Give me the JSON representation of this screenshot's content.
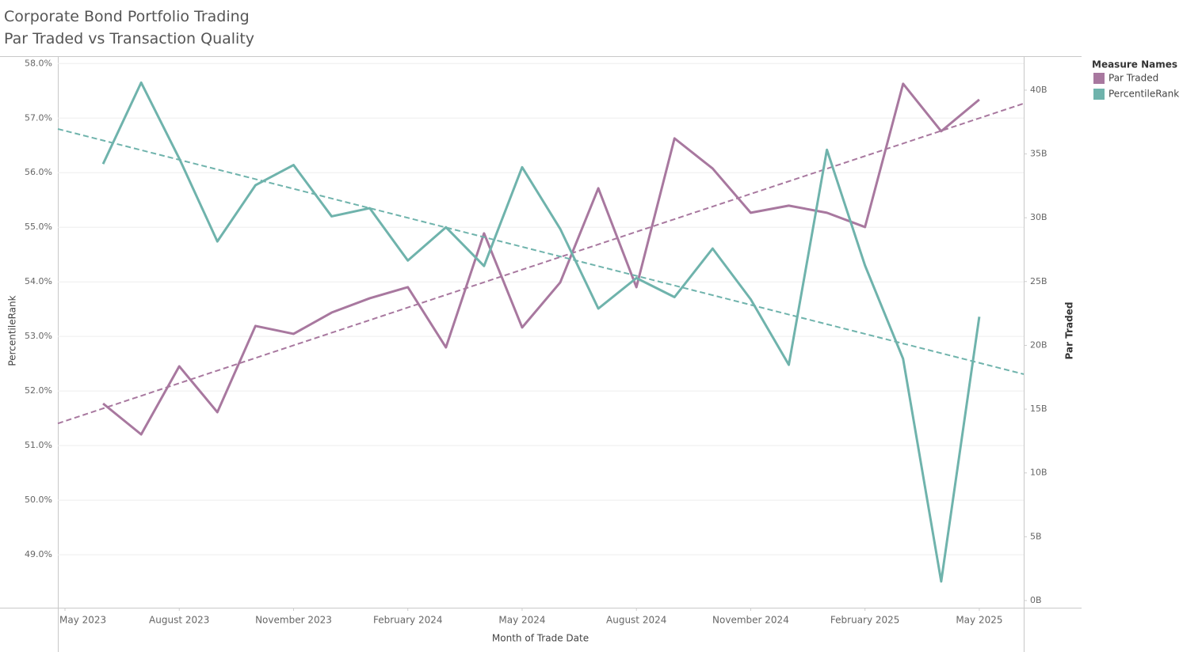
{
  "chart_data": {
    "type": "line",
    "title": "Corporate Bond Portfolio Trading",
    "subtitle": "Par Traded vs Transaction Quality",
    "x_label": "Month of Trade Date",
    "y_label": "PercentileRank",
    "y2_label": "Par Traded",
    "legend_title": "Measure Names",
    "legend": "right",
    "grid": true,
    "trend_lines": true,
    "x": [
      "2023-06",
      "2023-07",
      "2023-08",
      "2023-09",
      "2023-10",
      "2023-11",
      "2023-12",
      "2024-01",
      "2024-02",
      "2024-03",
      "2024-04",
      "2024-05",
      "2024-06",
      "2024-07",
      "2024-08",
      "2024-09",
      "2024-10",
      "2024-11",
      "2024-12",
      "2025-01",
      "2025-02",
      "2025-03",
      "2025-04",
      "2025-05"
    ],
    "xlim": [
      "2023-05",
      "2025-06"
    ],
    "xticks": [
      {
        "value": "2023-05",
        "label": "May 2023"
      },
      {
        "value": "2023-08",
        "label": "August 2023"
      },
      {
        "value": "2023-11",
        "label": "November 2023"
      },
      {
        "value": "2024-02",
        "label": "February 2024"
      },
      {
        "value": "2024-05",
        "label": "May 2024"
      },
      {
        "value": "2024-08",
        "label": "August 2024"
      },
      {
        "value": "2024-11",
        "label": "November 2024"
      },
      {
        "value": "2025-02",
        "label": "February 2025"
      },
      {
        "value": "2025-05",
        "label": "May 2025"
      }
    ],
    "ylim": [
      48.03,
      58.12
    ],
    "yticks": [
      {
        "value": 49,
        "label": "49.0%"
      },
      {
        "value": 50,
        "label": "50.0%"
      },
      {
        "value": 51,
        "label": "51.0%"
      },
      {
        "value": 52,
        "label": "52.0%"
      },
      {
        "value": 53,
        "label": "53.0%"
      },
      {
        "value": 54,
        "label": "54.0%"
      },
      {
        "value": 55,
        "label": "55.0%"
      },
      {
        "value": 56,
        "label": "56.0%"
      },
      {
        "value": 57,
        "label": "57.0%"
      },
      {
        "value": 58,
        "label": "58.0%"
      }
    ],
    "y2lim": [
      -0.56,
      42.6
    ],
    "y2ticks": [
      {
        "value": 0,
        "label": "0B"
      },
      {
        "value": 5,
        "label": "5B"
      },
      {
        "value": 10,
        "label": "10B"
      },
      {
        "value": 15,
        "label": "15B"
      },
      {
        "value": 20,
        "label": "20B"
      },
      {
        "value": 25,
        "label": "25B"
      },
      {
        "value": 30,
        "label": "30B"
      },
      {
        "value": 35,
        "label": "35B"
      },
      {
        "value": 40,
        "label": "40B"
      }
    ],
    "series": [
      {
        "name": "Par Traded",
        "color": "#a8789f",
        "axis": "y2",
        "values": [
          15.44,
          13.02,
          18.36,
          14.76,
          21.52,
          20.9,
          22.57,
          23.69,
          24.56,
          19.84,
          28.78,
          21.4,
          24.93,
          32.31,
          24.56,
          36.22,
          33.86,
          30.39,
          30.95,
          30.39,
          29.27,
          40.5,
          36.78,
          39.26
        ]
      },
      {
        "name": "PercentileRank",
        "color": "#6fb3ac",
        "axis": "y",
        "values": [
          56.16,
          57.65,
          56.26,
          54.74,
          55.77,
          56.14,
          55.2,
          55.35,
          54.39,
          55.0,
          54.29,
          56.1,
          54.97,
          53.51,
          54.07,
          53.72,
          54.61,
          53.68,
          52.48,
          56.42,
          54.3,
          52.59,
          48.51,
          53.36
        ]
      }
    ]
  }
}
